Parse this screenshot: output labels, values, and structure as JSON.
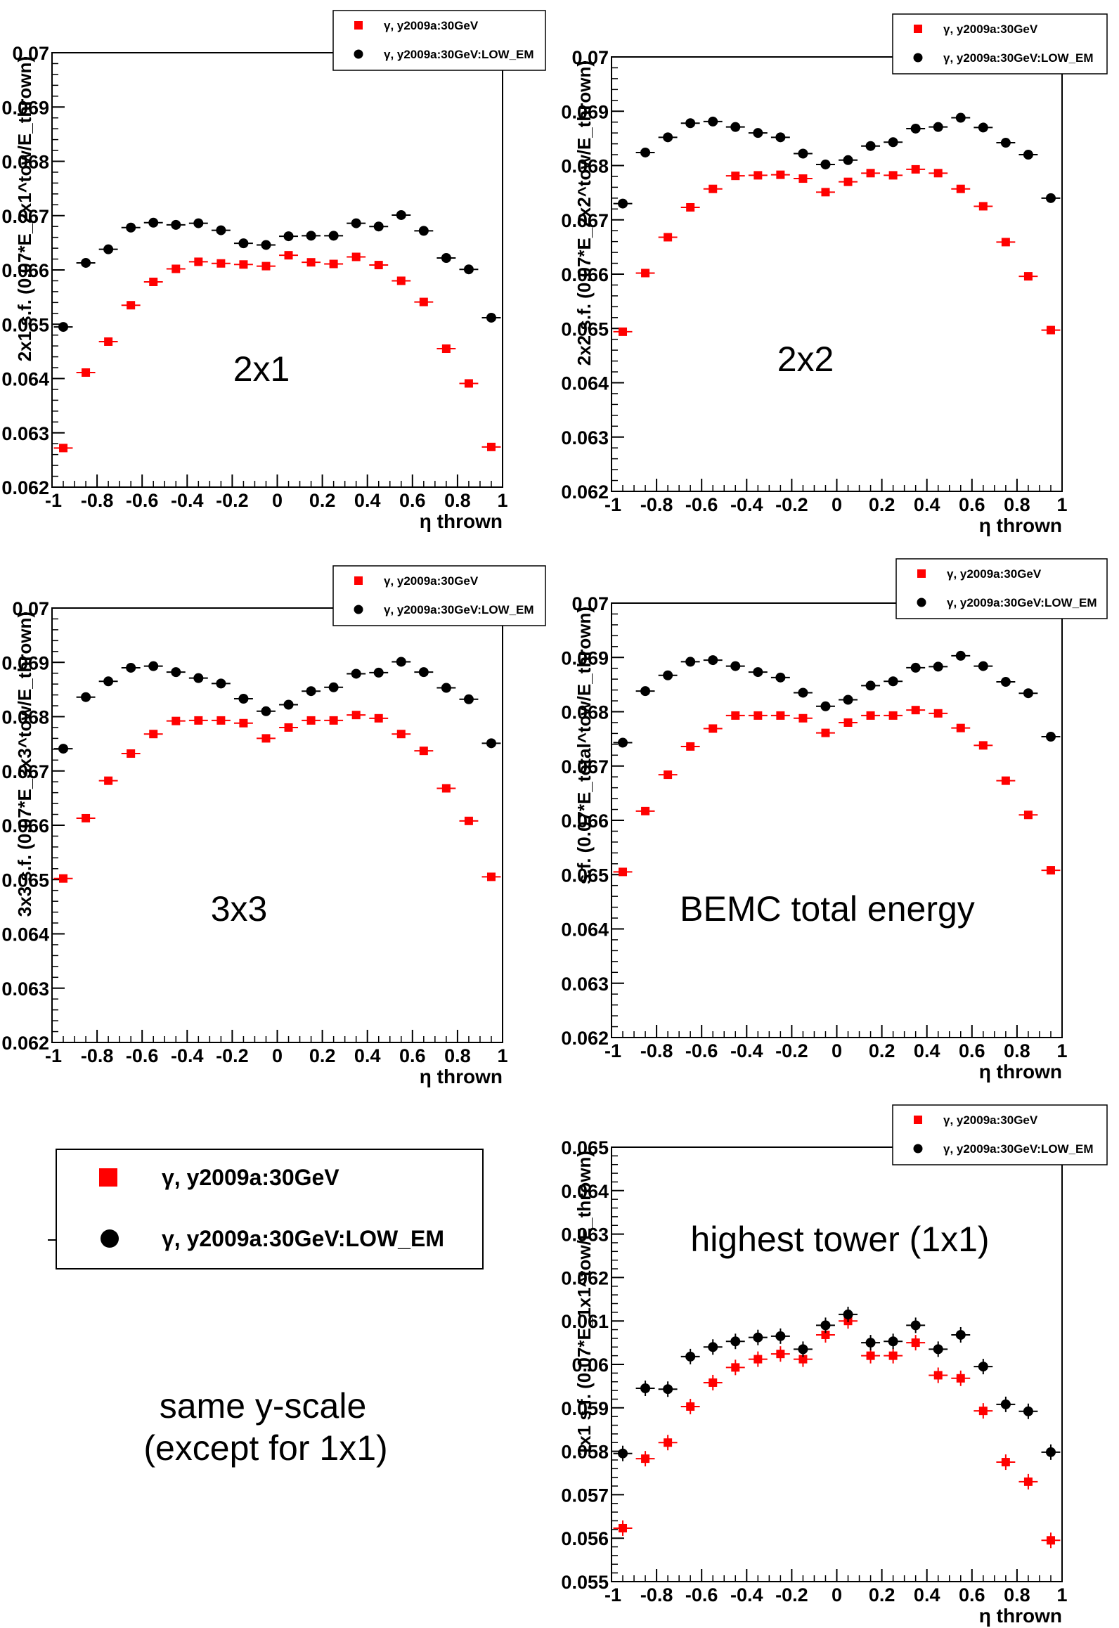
{
  "legend": {
    "series_red": "γ, y2009a:30GeV",
    "series_black": "γ, y2009a:30GeV:LOW_EM"
  },
  "note": {
    "line1": "same y-scale",
    "line2": "(except for 1x1)"
  },
  "colors": {
    "red": "#ff0000",
    "black": "#000000"
  },
  "chart_data": [
    {
      "type": "scatter",
      "name": "panel-2x1",
      "annotation": "2x1",
      "xlabel": "η thrown",
      "ylabel": "2x1 s.f. (0.07*E_2x1^tow/E_thrown)",
      "xlim": [
        -1,
        1
      ],
      "ylim": [
        0.062,
        0.07
      ],
      "xticks": [
        "-1",
        "-0.8",
        "-0.6",
        "-0.4",
        "-0.2",
        "0",
        "0.2",
        "0.4",
        "0.6",
        "0.8",
        "1"
      ],
      "yticks": [
        "0.062",
        "0.063",
        "0.064",
        "0.065",
        "0.066",
        "0.067",
        "0.068",
        "0.069",
        "0.07"
      ],
      "x": [
        -0.95,
        -0.85,
        -0.75,
        -0.65,
        -0.55,
        -0.45,
        -0.35,
        -0.25,
        -0.15,
        -0.05,
        0.05,
        0.15,
        0.25,
        0.35,
        0.45,
        0.55,
        0.65,
        0.75,
        0.85,
        0.95
      ],
      "series": [
        {
          "name": "γ, y2009a:30GeV",
          "color": "red",
          "values": [
            0.06272,
            0.06411,
            0.06468,
            0.06535,
            0.06578,
            0.06602,
            0.06615,
            0.06612,
            0.0661,
            0.06607,
            0.06627,
            0.06614,
            0.06611,
            0.06624,
            0.06609,
            0.0658,
            0.06541,
            0.06455,
            0.06391,
            0.06274
          ]
        },
        {
          "name": "γ, y2009a:30GeV:LOW_EM",
          "color": "black",
          "values": [
            0.06495,
            0.06613,
            0.06638,
            0.06678,
            0.06687,
            0.06683,
            0.06686,
            0.06673,
            0.06649,
            0.06646,
            0.06662,
            0.06663,
            0.06663,
            0.06686,
            0.0668,
            0.06701,
            0.06672,
            0.06622,
            0.06601,
            0.06512
          ]
        }
      ]
    },
    {
      "type": "scatter",
      "name": "panel-2x2",
      "annotation": "2x2",
      "xlabel": "η thrown",
      "ylabel": "2x2 s.f. (0.07*E_2x2^tow/E_thrown)",
      "xlim": [
        -1,
        1
      ],
      "ylim": [
        0.062,
        0.07
      ],
      "xticks": [
        "-1",
        "-0.8",
        "-0.6",
        "-0.4",
        "-0.2",
        "0",
        "0.2",
        "0.4",
        "0.6",
        "0.8",
        "1"
      ],
      "yticks": [
        "0.062",
        "0.063",
        "0.064",
        "0.065",
        "0.066",
        "0.067",
        "0.068",
        "0.069",
        "0.07"
      ],
      "x": [
        -0.95,
        -0.85,
        -0.75,
        -0.65,
        -0.55,
        -0.45,
        -0.35,
        -0.25,
        -0.15,
        -0.05,
        0.05,
        0.15,
        0.25,
        0.35,
        0.45,
        0.55,
        0.65,
        0.75,
        0.85,
        0.95
      ],
      "series": [
        {
          "name": "γ, y2009a:30GeV",
          "color": "red",
          "values": [
            0.06494,
            0.06602,
            0.06668,
            0.06723,
            0.06757,
            0.06781,
            0.06782,
            0.06783,
            0.06776,
            0.06751,
            0.0677,
            0.06786,
            0.06782,
            0.06793,
            0.06786,
            0.06757,
            0.06725,
            0.06659,
            0.06596,
            0.06497
          ]
        },
        {
          "name": "γ, y2009a:30GeV:LOW_EM",
          "color": "black",
          "values": [
            0.0673,
            0.06824,
            0.06852,
            0.06878,
            0.06881,
            0.06871,
            0.0686,
            0.06852,
            0.06822,
            0.06802,
            0.0681,
            0.06836,
            0.06843,
            0.06868,
            0.06871,
            0.06888,
            0.0687,
            0.06842,
            0.0682,
            0.0674
          ]
        }
      ]
    },
    {
      "type": "scatter",
      "name": "panel-3x3",
      "annotation": "3x3",
      "xlabel": "η thrown",
      "ylabel": "3x3 s.f. (0.07*E_3x3^tow/E_thrown)",
      "xlim": [
        -1,
        1
      ],
      "ylim": [
        0.062,
        0.07
      ],
      "xticks": [
        "-1",
        "-0.8",
        "-0.6",
        "-0.4",
        "-0.2",
        "0",
        "0.2",
        "0.4",
        "0.6",
        "0.8",
        "1"
      ],
      "yticks": [
        "0.062",
        "0.063",
        "0.064",
        "0.065",
        "0.066",
        "0.067",
        "0.068",
        "0.069",
        "0.07"
      ],
      "x": [
        -0.95,
        -0.85,
        -0.75,
        -0.65,
        -0.55,
        -0.45,
        -0.35,
        -0.25,
        -0.15,
        -0.05,
        0.05,
        0.15,
        0.25,
        0.35,
        0.45,
        0.55,
        0.65,
        0.75,
        0.85,
        0.95
      ],
      "series": [
        {
          "name": "γ, y2009a:30GeV",
          "color": "red",
          "values": [
            0.06502,
            0.06613,
            0.06682,
            0.06732,
            0.06768,
            0.06792,
            0.06793,
            0.06793,
            0.06788,
            0.0676,
            0.0678,
            0.06793,
            0.06793,
            0.06803,
            0.06797,
            0.06768,
            0.06737,
            0.06668,
            0.06608,
            0.06505
          ]
        },
        {
          "name": "γ, y2009a:30GeV:LOW_EM",
          "color": "black",
          "values": [
            0.06741,
            0.06836,
            0.06865,
            0.0689,
            0.06893,
            0.06882,
            0.06871,
            0.06861,
            0.06833,
            0.0681,
            0.06822,
            0.06847,
            0.06854,
            0.06879,
            0.06881,
            0.06901,
            0.06882,
            0.06853,
            0.06832,
            0.06751
          ]
        }
      ]
    },
    {
      "type": "scatter",
      "name": "panel-bemc-total",
      "annotation": "BEMC total energy",
      "xlabel": "η thrown",
      "ylabel": "s.f. (0.07*E_total^tow/E_thrown)",
      "xlim": [
        -1,
        1
      ],
      "ylim": [
        0.062,
        0.07
      ],
      "xticks": [
        "-1",
        "-0.8",
        "-0.6",
        "-0.4",
        "-0.2",
        "0",
        "0.2",
        "0.4",
        "0.6",
        "0.8",
        "1"
      ],
      "yticks": [
        "0.062",
        "0.063",
        "0.064",
        "0.065",
        "0.066",
        "0.067",
        "0.068",
        "0.069",
        "0.07"
      ],
      "x": [
        -0.95,
        -0.85,
        -0.75,
        -0.65,
        -0.55,
        -0.45,
        -0.35,
        -0.25,
        -0.15,
        -0.05,
        0.05,
        0.15,
        0.25,
        0.35,
        0.45,
        0.55,
        0.65,
        0.75,
        0.85,
        0.95
      ],
      "series": [
        {
          "name": "γ, y2009a:30GeV",
          "color": "red",
          "values": [
            0.06505,
            0.06617,
            0.06684,
            0.06736,
            0.06769,
            0.06793,
            0.06793,
            0.06793,
            0.06788,
            0.06761,
            0.0678,
            0.06793,
            0.06793,
            0.06803,
            0.06797,
            0.0677,
            0.06738,
            0.06673,
            0.0661,
            0.06508
          ]
        },
        {
          "name": "γ, y2009a:30GeV:LOW_EM",
          "color": "black",
          "values": [
            0.06743,
            0.06838,
            0.06867,
            0.06892,
            0.06895,
            0.06884,
            0.06873,
            0.06863,
            0.06835,
            0.0681,
            0.06822,
            0.06848,
            0.06856,
            0.06881,
            0.06883,
            0.06903,
            0.06884,
            0.06855,
            0.06834,
            0.06754
          ]
        }
      ]
    },
    {
      "type": "scatter",
      "name": "panel-highest-tower",
      "annotation": "highest tower (1x1)",
      "xlabel": "η thrown",
      "ylabel": "1x1 s.f. (0.07*E_1x1^tow/E_thrown)",
      "xlim": [
        -1,
        1
      ],
      "ylim": [
        0.055,
        0.065
      ],
      "xticks": [
        "-1",
        "-0.8",
        "-0.6",
        "-0.4",
        "-0.2",
        "0",
        "0.2",
        "0.4",
        "0.6",
        "0.8",
        "1"
      ],
      "yticks": [
        "0.055",
        "0.056",
        "0.057",
        "0.058",
        "0.059",
        "0.06",
        "0.061",
        "0.062",
        "0.063",
        "0.064",
        "0.065"
      ],
      "x": [
        -0.95,
        -0.85,
        -0.75,
        -0.65,
        -0.55,
        -0.45,
        -0.35,
        -0.25,
        -0.15,
        -0.05,
        0.05,
        0.15,
        0.25,
        0.35,
        0.45,
        0.55,
        0.65,
        0.75,
        0.85,
        0.95
      ],
      "series": [
        {
          "name": "γ, y2009a:30GeV",
          "color": "red",
          "values": [
            0.05623,
            0.05783,
            0.0582,
            0.05903,
            0.05958,
            0.05993,
            0.06012,
            0.06024,
            0.06012,
            0.06068,
            0.061,
            0.0602,
            0.0602,
            0.0605,
            0.05975,
            0.05968,
            0.05893,
            0.05775,
            0.0573,
            0.05595
          ]
        },
        {
          "name": "γ, y2009a:30GeV:LOW_EM",
          "color": "black",
          "values": [
            0.05795,
            0.05945,
            0.05943,
            0.06018,
            0.0604,
            0.06053,
            0.06062,
            0.06065,
            0.06035,
            0.0609,
            0.06115,
            0.0605,
            0.06053,
            0.0609,
            0.06035,
            0.06068,
            0.05995,
            0.05908,
            0.05892,
            0.05798
          ]
        }
      ]
    }
  ]
}
